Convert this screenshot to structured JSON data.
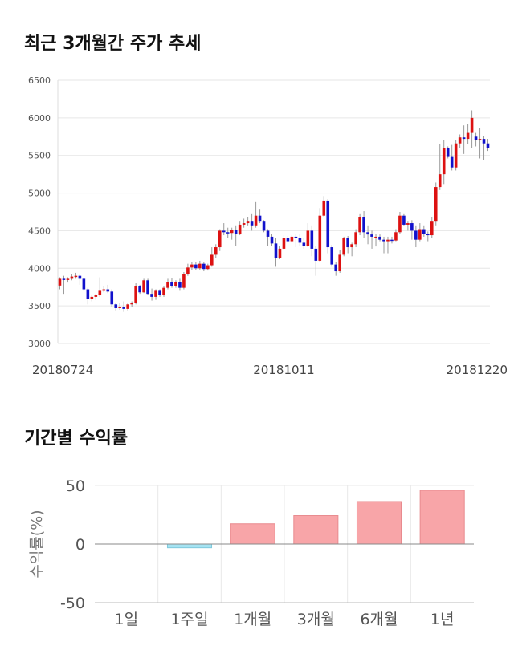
{
  "sections": {
    "price_title": "최근 3개월간 주가 추세",
    "return_title": "기간별 수익률"
  },
  "chart_data": [
    {
      "type": "candlestick",
      "title": "최근 3개월간 주가 추세",
      "ylim": [
        3000,
        6500
      ],
      "yticks": [
        3000,
        3500,
        4000,
        4500,
        5000,
        5500,
        6000,
        6500
      ],
      "xtick_labels": [
        {
          "index": 0,
          "label": "20180724"
        },
        {
          "index": 56,
          "label": "20181011"
        },
        {
          "index": 103,
          "label": "20181220"
        }
      ],
      "grid": true,
      "up_color": "#dd1111",
      "down_color": "#1111cc",
      "ohlc": [
        [
          3770,
          3880,
          3720,
          3860
        ],
        [
          3860,
          3900,
          3660,
          3850
        ],
        [
          3850,
          3880,
          3810,
          3860
        ],
        [
          3860,
          3920,
          3840,
          3890
        ],
        [
          3890,
          3940,
          3860,
          3900
        ],
        [
          3900,
          3930,
          3780,
          3860
        ],
        [
          3860,
          3870,
          3700,
          3720
        ],
        [
          3720,
          3740,
          3520,
          3590
        ],
        [
          3590,
          3640,
          3560,
          3620
        ],
        [
          3620,
          3660,
          3580,
          3640
        ],
        [
          3640,
          3880,
          3620,
          3700
        ],
        [
          3700,
          3760,
          3680,
          3720
        ],
        [
          3720,
          3780,
          3670,
          3690
        ],
        [
          3690,
          3720,
          3490,
          3520
        ],
        [
          3520,
          3540,
          3440,
          3470
        ],
        [
          3470,
          3540,
          3450,
          3490
        ],
        [
          3490,
          3560,
          3420,
          3460
        ],
        [
          3460,
          3540,
          3440,
          3520
        ],
        [
          3520,
          3560,
          3480,
          3540
        ],
        [
          3540,
          3800,
          3520,
          3760
        ],
        [
          3760,
          3780,
          3660,
          3680
        ],
        [
          3680,
          3860,
          3670,
          3840
        ],
        [
          3840,
          3860,
          3640,
          3660
        ],
        [
          3660,
          3730,
          3570,
          3620
        ],
        [
          3620,
          3720,
          3580,
          3700
        ],
        [
          3700,
          3720,
          3620,
          3650
        ],
        [
          3650,
          3760,
          3620,
          3740
        ],
        [
          3740,
          3860,
          3720,
          3820
        ],
        [
          3820,
          3870,
          3740,
          3760
        ],
        [
          3760,
          3840,
          3740,
          3820
        ],
        [
          3820,
          3860,
          3700,
          3740
        ],
        [
          3740,
          3950,
          3720,
          3920
        ],
        [
          3920,
          4060,
          3900,
          4010
        ],
        [
          4010,
          4080,
          3980,
          4050
        ],
        [
          4050,
          4080,
          3980,
          4000
        ],
        [
          4000,
          4100,
          3980,
          4060
        ],
        [
          4060,
          4080,
          3960,
          3990
        ],
        [
          3990,
          4060,
          3970,
          4040
        ],
        [
          4040,
          4280,
          4020,
          4180
        ],
        [
          4180,
          4320,
          4140,
          4280
        ],
        [
          4280,
          4520,
          4230,
          4500
        ],
        [
          4500,
          4600,
          4440,
          4480
        ],
        [
          4480,
          4540,
          4400,
          4470
        ],
        [
          4470,
          4540,
          4380,
          4510
        ],
        [
          4510,
          4560,
          4300,
          4460
        ],
        [
          4460,
          4620,
          4440,
          4580
        ],
        [
          4580,
          4660,
          4540,
          4600
        ],
        [
          4600,
          4680,
          4560,
          4620
        ],
        [
          4620,
          4720,
          4500,
          4560
        ],
        [
          4560,
          4880,
          4540,
          4700
        ],
        [
          4700,
          4780,
          4600,
          4620
        ],
        [
          4620,
          4640,
          4480,
          4500
        ],
        [
          4500,
          4520,
          4300,
          4420
        ],
        [
          4420,
          4460,
          4300,
          4330
        ],
        [
          4330,
          4400,
          4020,
          4140
        ],
        [
          4140,
          4300,
          4120,
          4260
        ],
        [
          4260,
          4440,
          4240,
          4400
        ],
        [
          4400,
          4430,
          4340,
          4360
        ],
        [
          4360,
          4440,
          4340,
          4420
        ],
        [
          4420,
          4450,
          4280,
          4400
        ],
        [
          4400,
          4460,
          4300,
          4340
        ],
        [
          4340,
          4400,
          4260,
          4300
        ],
        [
          4300,
          4600,
          4280,
          4500
        ],
        [
          4500,
          4560,
          4160,
          4260
        ],
        [
          4260,
          4300,
          3900,
          4100
        ],
        [
          4100,
          4800,
          4080,
          4700
        ],
        [
          4700,
          4960,
          4680,
          4900
        ],
        [
          4900,
          4920,
          4200,
          4280
        ],
        [
          4280,
          4310,
          4020,
          4050
        ],
        [
          4050,
          4080,
          3900,
          3960
        ],
        [
          3960,
          4240,
          3940,
          4180
        ],
        [
          4180,
          4420,
          4160,
          4400
        ],
        [
          4400,
          4430,
          4200,
          4280
        ],
        [
          4280,
          4340,
          4160,
          4320
        ],
        [
          4320,
          4520,
          4280,
          4480
        ],
        [
          4480,
          4720,
          4440,
          4680
        ],
        [
          4680,
          4760,
          4400,
          4480
        ],
        [
          4480,
          4560,
          4320,
          4450
        ],
        [
          4450,
          4500,
          4260,
          4420
        ],
        [
          4420,
          4460,
          4290,
          4420
        ],
        [
          4420,
          4450,
          4360,
          4380
        ],
        [
          4380,
          4420,
          4200,
          4360
        ],
        [
          4360,
          4420,
          4200,
          4380
        ],
        [
          4380,
          4420,
          4330,
          4370
        ],
        [
          4370,
          4520,
          4360,
          4480
        ],
        [
          4480,
          4750,
          4460,
          4700
        ],
        [
          4700,
          4720,
          4560,
          4580
        ],
        [
          4580,
          4620,
          4500,
          4600
        ],
        [
          4600,
          4640,
          4380,
          4500
        ],
        [
          4500,
          4560,
          4280,
          4380
        ],
        [
          4380,
          4600,
          4360,
          4520
        ],
        [
          4520,
          4560,
          4420,
          4460
        ],
        [
          4460,
          4490,
          4360,
          4440
        ],
        [
          4440,
          4680,
          4400,
          4620
        ],
        [
          4620,
          5140,
          4560,
          5080
        ],
        [
          5080,
          5650,
          5040,
          5250
        ],
        [
          5250,
          5700,
          5120,
          5600
        ],
        [
          5600,
          5620,
          5460,
          5480
        ],
        [
          5480,
          5640,
          5300,
          5340
        ],
        [
          5340,
          5700,
          5300,
          5660
        ],
        [
          5660,
          5780,
          5600,
          5740
        ],
        [
          5740,
          5900,
          5520,
          5720
        ],
        [
          5720,
          5920,
          5650,
          5800
        ],
        [
          5800,
          6100,
          5600,
          6000
        ],
        [
          5750,
          5800,
          5620,
          5700
        ],
        [
          5700,
          5860,
          5460,
          5720
        ],
        [
          5720,
          5760,
          5440,
          5660
        ],
        [
          5660,
          5720,
          5560,
          5600
        ]
      ]
    },
    {
      "type": "bar",
      "title": "기간별 수익률",
      "ylabel": "수익률(%)",
      "ylim": [
        -50,
        50
      ],
      "yticks": [
        -50,
        0,
        50
      ],
      "categories": [
        "1일",
        "1주일",
        "1개월",
        "3개월",
        "6개월",
        "1년"
      ],
      "values": [
        0.0,
        -3.2,
        17.3,
        24.3,
        36.3,
        45.9
      ],
      "positive_color": "#f8a5a8",
      "negative_color": "#a5e3f2"
    }
  ]
}
